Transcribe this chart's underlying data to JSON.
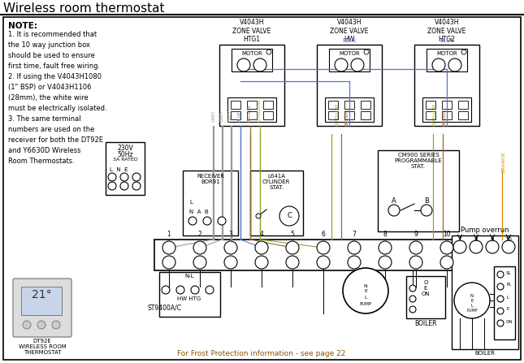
{
  "title": "Wireless room thermostat",
  "bg_color": "#ffffff",
  "note_text": "NOTE:",
  "note_lines": [
    "1. It is recommended that",
    "the 10 way junction box",
    "should be used to ensure",
    "first time, fault free wiring.",
    "2. If using the V4043H1080",
    "(1\" BSP) or V4043H1106",
    "(28mm), the white wire",
    "must be electrically isolated.",
    "3. The same terminal",
    "numbers are used on the",
    "receiver for both the DT92E",
    "and Y6630D Wireless",
    "Room Thermostats."
  ],
  "footer_text": "For Frost Protection information - see page 22",
  "wire_colors": {
    "grey": "#999999",
    "blue": "#5577cc",
    "brown": "#996633",
    "g_yellow": "#88aa22",
    "orange": "#dd8800",
    "black": "#111111"
  }
}
